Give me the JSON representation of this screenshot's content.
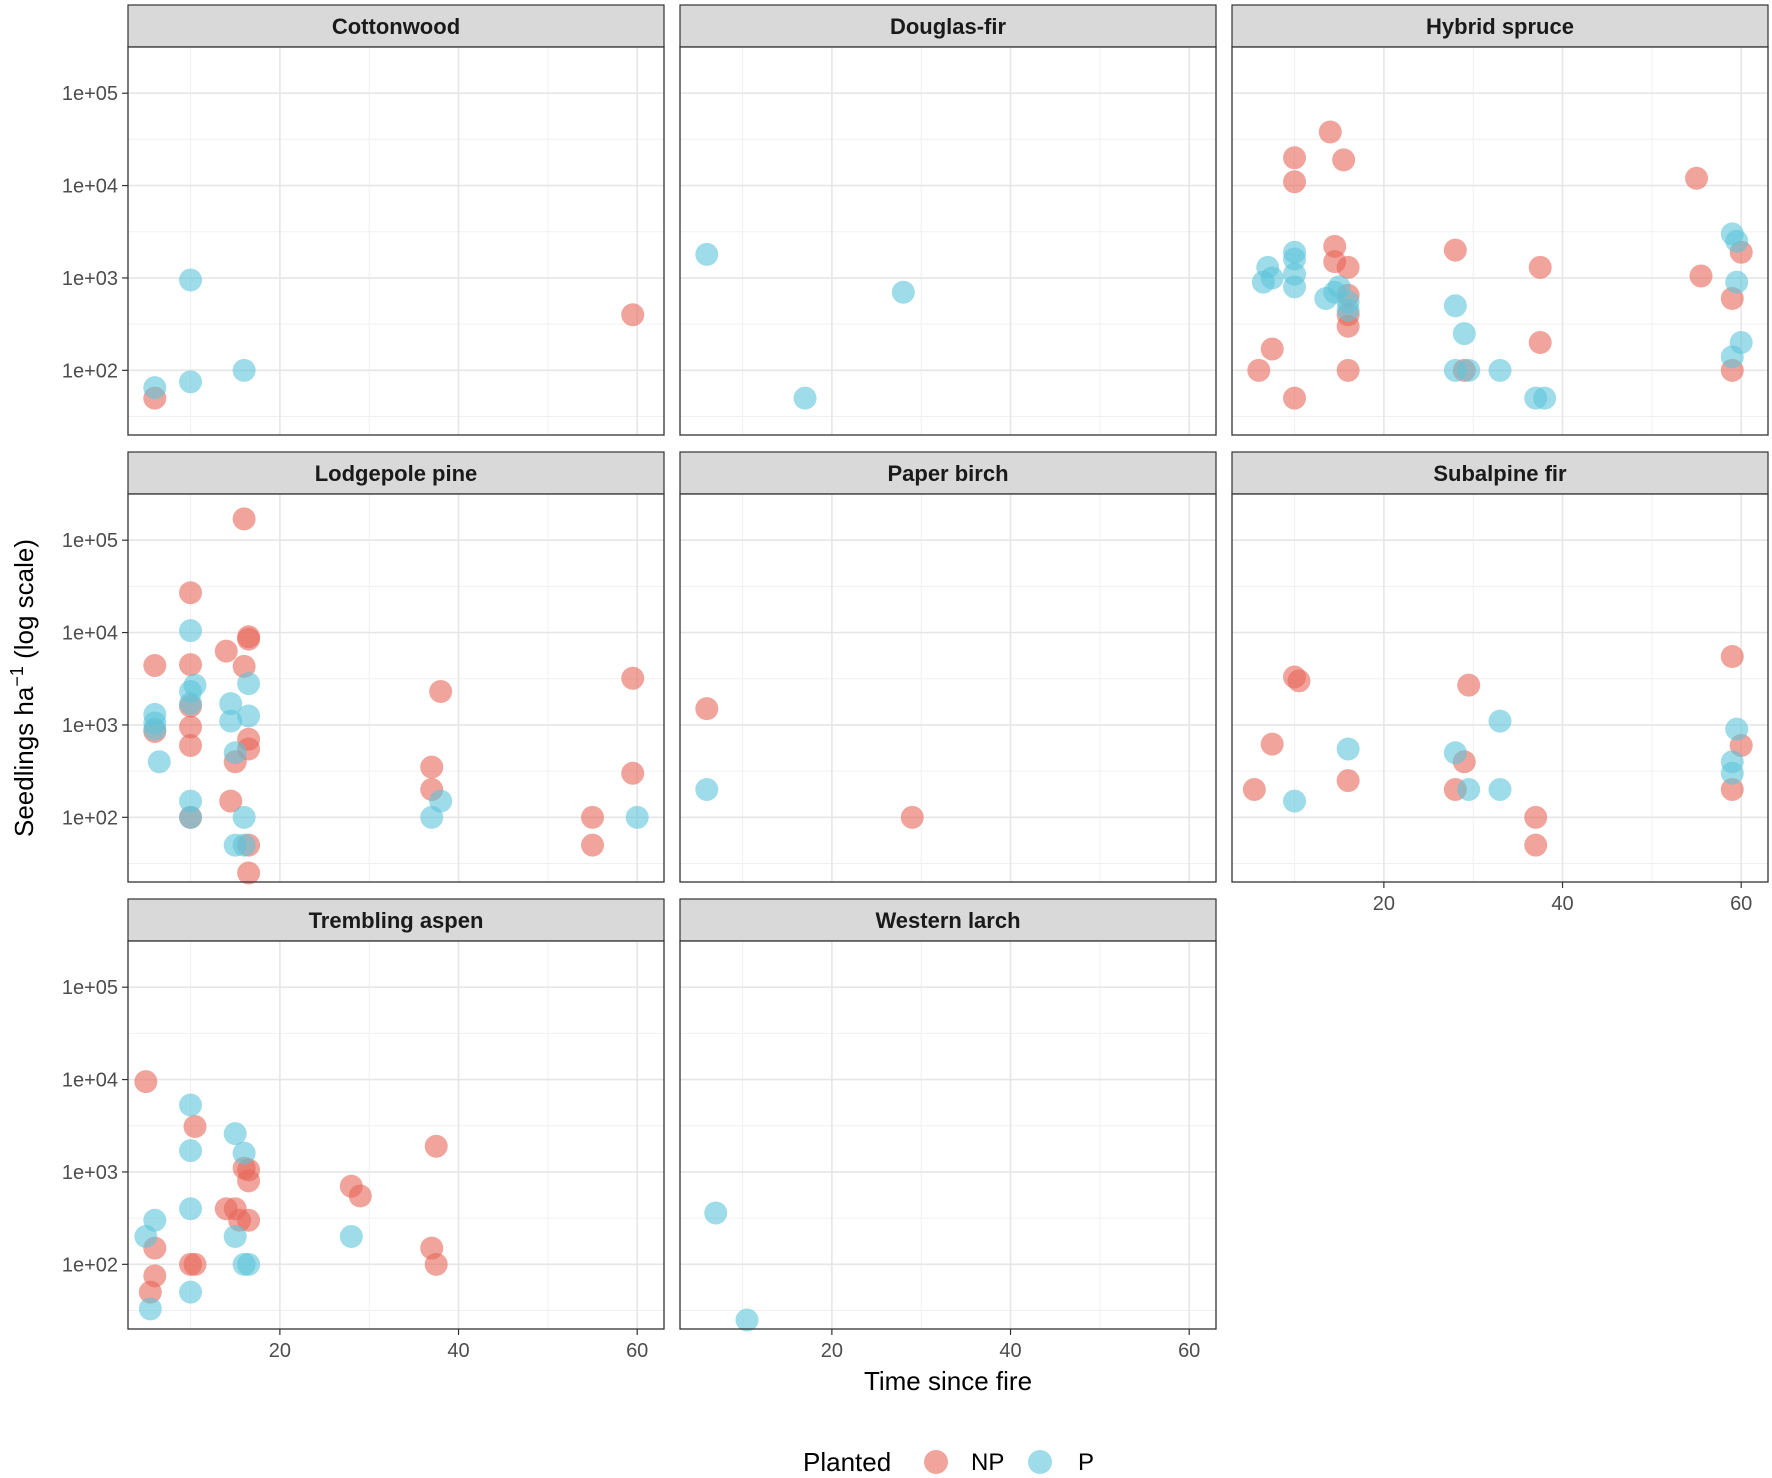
{
  "chart_data": {
    "type": "scatter",
    "facet": true,
    "x_label": "Time since fire",
    "y_label": {
      "prefix": "Seedlings ha",
      "superscript": "−1",
      "suffix": " (log scale)"
    },
    "y_scale": "log10",
    "xlim": [
      3,
      63
    ],
    "ylim_log10": [
      1.3,
      5.5
    ],
    "x_ticks": [
      20,
      40,
      60
    ],
    "x_tick_labels": [
      "20",
      "40",
      "60"
    ],
    "y_ticks": [
      100,
      1000,
      10000,
      100000
    ],
    "y_tick_labels": [
      "1e+02",
      "1e+03",
      "1e+04",
      "1e+05"
    ],
    "legend": {
      "title": "Planted",
      "position": "bottom",
      "entries": [
        {
          "label": "NP",
          "color": "#E8675A"
        },
        {
          "label": "P",
          "color": "#5EC4DA"
        }
      ]
    },
    "point_opacity": 0.6,
    "panels": [
      {
        "name": "Cottonwood",
        "points": [
          {
            "x": 6,
            "y": 50,
            "g": "NP"
          },
          {
            "x": 59.5,
            "y": 400,
            "g": "NP"
          },
          {
            "x": 6,
            "y": 65,
            "g": "P"
          },
          {
            "x": 10,
            "y": 75,
            "g": "P"
          },
          {
            "x": 10,
            "y": 950,
            "g": "P"
          },
          {
            "x": 16,
            "y": 100,
            "g": "P"
          }
        ]
      },
      {
        "name": "Douglas-fir",
        "points": [
          {
            "x": 6,
            "y": 1800,
            "g": "P"
          },
          {
            "x": 17,
            "y": 50,
            "g": "P"
          },
          {
            "x": 28,
            "y": 700,
            "g": "P"
          }
        ]
      },
      {
        "name": "Hybrid spruce",
        "points": [
          {
            "x": 6,
            "y": 100,
            "g": "NP"
          },
          {
            "x": 7.5,
            "y": 170,
            "g": "NP"
          },
          {
            "x": 10,
            "y": 50,
            "g": "NP"
          },
          {
            "x": 10,
            "y": 20000,
            "g": "NP"
          },
          {
            "x": 10,
            "y": 11000,
            "g": "NP"
          },
          {
            "x": 14,
            "y": 38000,
            "g": "NP"
          },
          {
            "x": 15.5,
            "y": 19000,
            "g": "NP"
          },
          {
            "x": 14.5,
            "y": 2200,
            "g": "NP"
          },
          {
            "x": 14.5,
            "y": 1500,
            "g": "NP"
          },
          {
            "x": 16,
            "y": 1300,
            "g": "NP"
          },
          {
            "x": 16,
            "y": 650,
            "g": "NP"
          },
          {
            "x": 16,
            "y": 400,
            "g": "NP"
          },
          {
            "x": 16,
            "y": 300,
            "g": "NP"
          },
          {
            "x": 16,
            "y": 100,
            "g": "NP"
          },
          {
            "x": 28,
            "y": 2000,
            "g": "NP"
          },
          {
            "x": 29,
            "y": 100,
            "g": "NP"
          },
          {
            "x": 37.5,
            "y": 1300,
            "g": "NP"
          },
          {
            "x": 37.5,
            "y": 200,
            "g": "NP"
          },
          {
            "x": 55,
            "y": 12000,
            "g": "NP"
          },
          {
            "x": 55.5,
            "y": 1050,
            "g": "NP"
          },
          {
            "x": 59,
            "y": 600,
            "g": "NP"
          },
          {
            "x": 59,
            "y": 100,
            "g": "NP"
          },
          {
            "x": 60,
            "y": 1900,
            "g": "NP"
          },
          {
            "x": 6.5,
            "y": 900,
            "g": "P"
          },
          {
            "x": 7,
            "y": 1300,
            "g": "P"
          },
          {
            "x": 7.5,
            "y": 1000,
            "g": "P"
          },
          {
            "x": 10,
            "y": 800,
            "g": "P"
          },
          {
            "x": 10,
            "y": 1100,
            "g": "P"
          },
          {
            "x": 10,
            "y": 1600,
            "g": "P"
          },
          {
            "x": 10,
            "y": 1900,
            "g": "P"
          },
          {
            "x": 13.5,
            "y": 600,
            "g": "P"
          },
          {
            "x": 14.5,
            "y": 700,
            "g": "P"
          },
          {
            "x": 15,
            "y": 800,
            "g": "P"
          },
          {
            "x": 16,
            "y": 450,
            "g": "P"
          },
          {
            "x": 16,
            "y": 550,
            "g": "P"
          },
          {
            "x": 28,
            "y": 500,
            "g": "P"
          },
          {
            "x": 28,
            "y": 100,
            "g": "P"
          },
          {
            "x": 29,
            "y": 250,
            "g": "P"
          },
          {
            "x": 29.5,
            "y": 100,
            "g": "P"
          },
          {
            "x": 33,
            "y": 100,
            "g": "P"
          },
          {
            "x": 37,
            "y": 50,
            "g": "P"
          },
          {
            "x": 38,
            "y": 50,
            "g": "P"
          },
          {
            "x": 59,
            "y": 3000,
            "g": "P"
          },
          {
            "x": 59.5,
            "y": 2500,
            "g": "P"
          },
          {
            "x": 59.5,
            "y": 900,
            "g": "P"
          },
          {
            "x": 59,
            "y": 140,
            "g": "P"
          },
          {
            "x": 60,
            "y": 200,
            "g": "P"
          }
        ]
      },
      {
        "name": "Lodgepole pine",
        "points": [
          {
            "x": 6,
            "y": 4400,
            "g": "NP"
          },
          {
            "x": 6,
            "y": 850,
            "g": "NP"
          },
          {
            "x": 10,
            "y": 27000,
            "g": "NP"
          },
          {
            "x": 10,
            "y": 4500,
            "g": "NP"
          },
          {
            "x": 10,
            "y": 1600,
            "g": "NP"
          },
          {
            "x": 10,
            "y": 950,
            "g": "NP"
          },
          {
            "x": 10,
            "y": 600,
            "g": "NP"
          },
          {
            "x": 10,
            "y": 100,
            "g": "NP"
          },
          {
            "x": 14,
            "y": 6300,
            "g": "NP"
          },
          {
            "x": 14.5,
            "y": 150,
            "g": "NP"
          },
          {
            "x": 15,
            "y": 400,
            "g": "NP"
          },
          {
            "x": 16,
            "y": 170000,
            "g": "NP"
          },
          {
            "x": 16.5,
            "y": 9000,
            "g": "NP"
          },
          {
            "x": 16.5,
            "y": 8500,
            "g": "NP"
          },
          {
            "x": 16,
            "y": 4300,
            "g": "NP"
          },
          {
            "x": 16.5,
            "y": 700,
            "g": "NP"
          },
          {
            "x": 16.5,
            "y": 550,
            "g": "NP"
          },
          {
            "x": 16.5,
            "y": 50,
            "g": "NP"
          },
          {
            "x": 16.5,
            "y": 25,
            "g": "NP"
          },
          {
            "x": 37,
            "y": 350,
            "g": "NP"
          },
          {
            "x": 37,
            "y": 200,
            "g": "NP"
          },
          {
            "x": 38,
            "y": 2300,
            "g": "NP"
          },
          {
            "x": 55,
            "y": 100,
            "g": "NP"
          },
          {
            "x": 55,
            "y": 50,
            "g": "NP"
          },
          {
            "x": 59.5,
            "y": 3200,
            "g": "NP"
          },
          {
            "x": 59.5,
            "y": 300,
            "g": "NP"
          },
          {
            "x": 6,
            "y": 1300,
            "g": "P"
          },
          {
            "x": 6,
            "y": 1050,
            "g": "P"
          },
          {
            "x": 6,
            "y": 900,
            "g": "P"
          },
          {
            "x": 6.5,
            "y": 400,
            "g": "P"
          },
          {
            "x": 10,
            "y": 10500,
            "g": "P"
          },
          {
            "x": 10.5,
            "y": 2700,
            "g": "P"
          },
          {
            "x": 10,
            "y": 2300,
            "g": "P"
          },
          {
            "x": 10,
            "y": 1700,
            "g": "P"
          },
          {
            "x": 10,
            "y": 150,
            "g": "P"
          },
          {
            "x": 10,
            "y": 100,
            "g": "P"
          },
          {
            "x": 14.5,
            "y": 1700,
            "g": "P"
          },
          {
            "x": 14.5,
            "y": 1100,
            "g": "P"
          },
          {
            "x": 15,
            "y": 500,
            "g": "P"
          },
          {
            "x": 15,
            "y": 50,
            "g": "P"
          },
          {
            "x": 16.5,
            "y": 2800,
            "g": "P"
          },
          {
            "x": 16.5,
            "y": 1250,
            "g": "P"
          },
          {
            "x": 16,
            "y": 100,
            "g": "P"
          },
          {
            "x": 16,
            "y": 50,
            "g": "P"
          },
          {
            "x": 37,
            "y": 100,
            "g": "P"
          },
          {
            "x": 38,
            "y": 150,
            "g": "P"
          },
          {
            "x": 60,
            "y": 100,
            "g": "P"
          }
        ]
      },
      {
        "name": "Paper birch",
        "points": [
          {
            "x": 6,
            "y": 1500,
            "g": "NP"
          },
          {
            "x": 29,
            "y": 100,
            "g": "NP"
          },
          {
            "x": 6,
            "y": 200,
            "g": "P"
          }
        ]
      },
      {
        "name": "Subalpine fir",
        "points": [
          {
            "x": 5.5,
            "y": 200,
            "g": "NP"
          },
          {
            "x": 7.5,
            "y": 620,
            "g": "NP"
          },
          {
            "x": 10,
            "y": 3300,
            "g": "NP"
          },
          {
            "x": 10.5,
            "y": 3000,
            "g": "NP"
          },
          {
            "x": 16,
            "y": 250,
            "g": "NP"
          },
          {
            "x": 28,
            "y": 200,
            "g": "NP"
          },
          {
            "x": 29.5,
            "y": 2700,
            "g": "NP"
          },
          {
            "x": 29,
            "y": 400,
            "g": "NP"
          },
          {
            "x": 37,
            "y": 100,
            "g": "NP"
          },
          {
            "x": 37,
            "y": 50,
            "g": "NP"
          },
          {
            "x": 59,
            "y": 5500,
            "g": "NP"
          },
          {
            "x": 59,
            "y": 200,
            "g": "NP"
          },
          {
            "x": 60,
            "y": 600,
            "g": "NP"
          },
          {
            "x": 10,
            "y": 150,
            "g": "P"
          },
          {
            "x": 16,
            "y": 550,
            "g": "P"
          },
          {
            "x": 28,
            "y": 500,
            "g": "P"
          },
          {
            "x": 29.5,
            "y": 200,
            "g": "P"
          },
          {
            "x": 33,
            "y": 1100,
            "g": "P"
          },
          {
            "x": 33,
            "y": 200,
            "g": "P"
          },
          {
            "x": 59.5,
            "y": 900,
            "g": "P"
          },
          {
            "x": 59,
            "y": 400,
            "g": "P"
          },
          {
            "x": 59,
            "y": 300,
            "g": "P"
          }
        ]
      },
      {
        "name": "Trembling aspen",
        "points": [
          {
            "x": 5,
            "y": 9500,
            "g": "NP"
          },
          {
            "x": 6,
            "y": 150,
            "g": "NP"
          },
          {
            "x": 6,
            "y": 75,
            "g": "NP"
          },
          {
            "x": 5.5,
            "y": 50,
            "g": "NP"
          },
          {
            "x": 10.5,
            "y": 3100,
            "g": "NP"
          },
          {
            "x": 10,
            "y": 100,
            "g": "NP"
          },
          {
            "x": 10.5,
            "y": 100,
            "g": "NP"
          },
          {
            "x": 14,
            "y": 400,
            "g": "NP"
          },
          {
            "x": 15,
            "y": 400,
            "g": "NP"
          },
          {
            "x": 15.5,
            "y": 300,
            "g": "NP"
          },
          {
            "x": 16,
            "y": 1100,
            "g": "NP"
          },
          {
            "x": 16.5,
            "y": 1050,
            "g": "NP"
          },
          {
            "x": 16.5,
            "y": 800,
            "g": "NP"
          },
          {
            "x": 16.5,
            "y": 300,
            "g": "NP"
          },
          {
            "x": 28,
            "y": 700,
            "g": "NP"
          },
          {
            "x": 29,
            "y": 550,
            "g": "NP"
          },
          {
            "x": 37.5,
            "y": 1900,
            "g": "NP"
          },
          {
            "x": 37,
            "y": 150,
            "g": "NP"
          },
          {
            "x": 37.5,
            "y": 100,
            "g": "NP"
          },
          {
            "x": 5,
            "y": 200,
            "g": "P"
          },
          {
            "x": 6,
            "y": 300,
            "g": "P"
          },
          {
            "x": 5.5,
            "y": 33,
            "g": "P"
          },
          {
            "x": 10,
            "y": 5300,
            "g": "P"
          },
          {
            "x": 10,
            "y": 1700,
            "g": "P"
          },
          {
            "x": 10,
            "y": 400,
            "g": "P"
          },
          {
            "x": 10,
            "y": 50,
            "g": "P"
          },
          {
            "x": 15,
            "y": 2600,
            "g": "P"
          },
          {
            "x": 16,
            "y": 1600,
            "g": "P"
          },
          {
            "x": 15,
            "y": 200,
            "g": "P"
          },
          {
            "x": 16,
            "y": 100,
            "g": "P"
          },
          {
            "x": 16.5,
            "y": 100,
            "g": "P"
          },
          {
            "x": 28,
            "y": 200,
            "g": "P"
          }
        ]
      },
      {
        "name": "Western larch",
        "points": [
          {
            "x": 7,
            "y": 360,
            "g": "P"
          },
          {
            "x": 10.5,
            "y": 25,
            "g": "P"
          }
        ]
      }
    ]
  }
}
